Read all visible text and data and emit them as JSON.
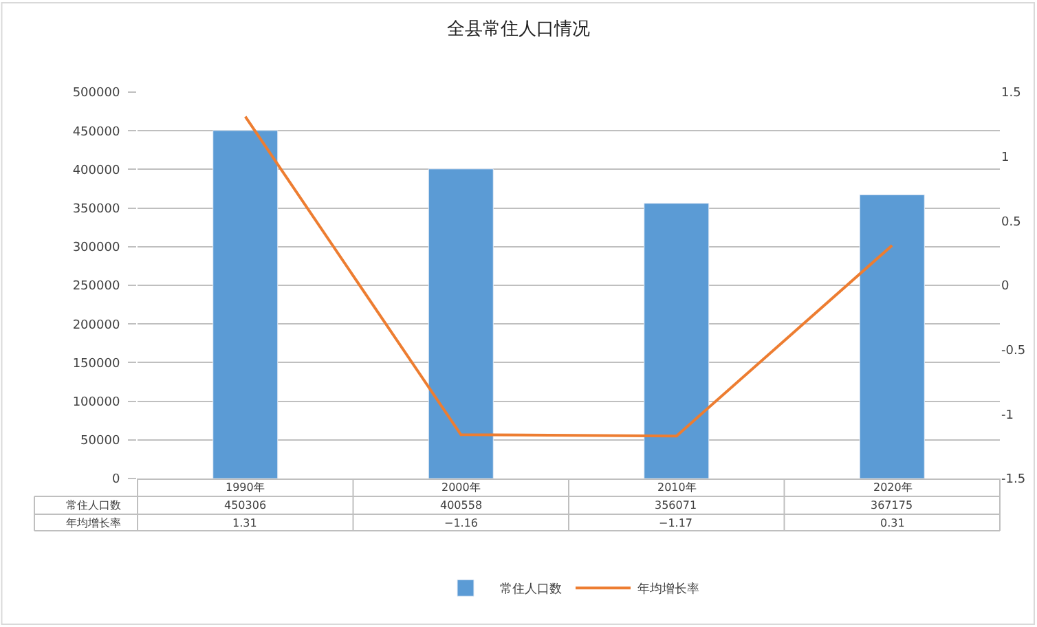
{
  "chart_data": {
    "type": "bar",
    "title": "全县常住人口情况",
    "categories": [
      "1990年",
      "2000年",
      "2010年",
      "2020年"
    ],
    "series": [
      {
        "name": "常住人口数",
        "color": "#5b9bd5",
        "values": [
          450306,
          400558,
          356071,
          367175
        ]
      },
      {
        "name": "年均增长率",
        "color": "#ed7d31",
        "type": "line",
        "axis": "y2",
        "marker": "none",
        "values": [
          1.31,
          -1.16,
          -1.17,
          0.31
        ]
      }
    ],
    "ylim": [
      0,
      500000
    ],
    "yticks": [
      0,
      50000,
      100000,
      150000,
      200000,
      250000,
      300000,
      350000,
      400000,
      450000,
      500000
    ],
    "y2lim": [
      -1.5,
      1.5
    ],
    "y2ticks": [
      -1.5,
      -1,
      -0.5,
      0,
      0.5,
      1,
      1.5
    ],
    "grid": "y",
    "legend": "bottom",
    "data_labels": true
  }
}
